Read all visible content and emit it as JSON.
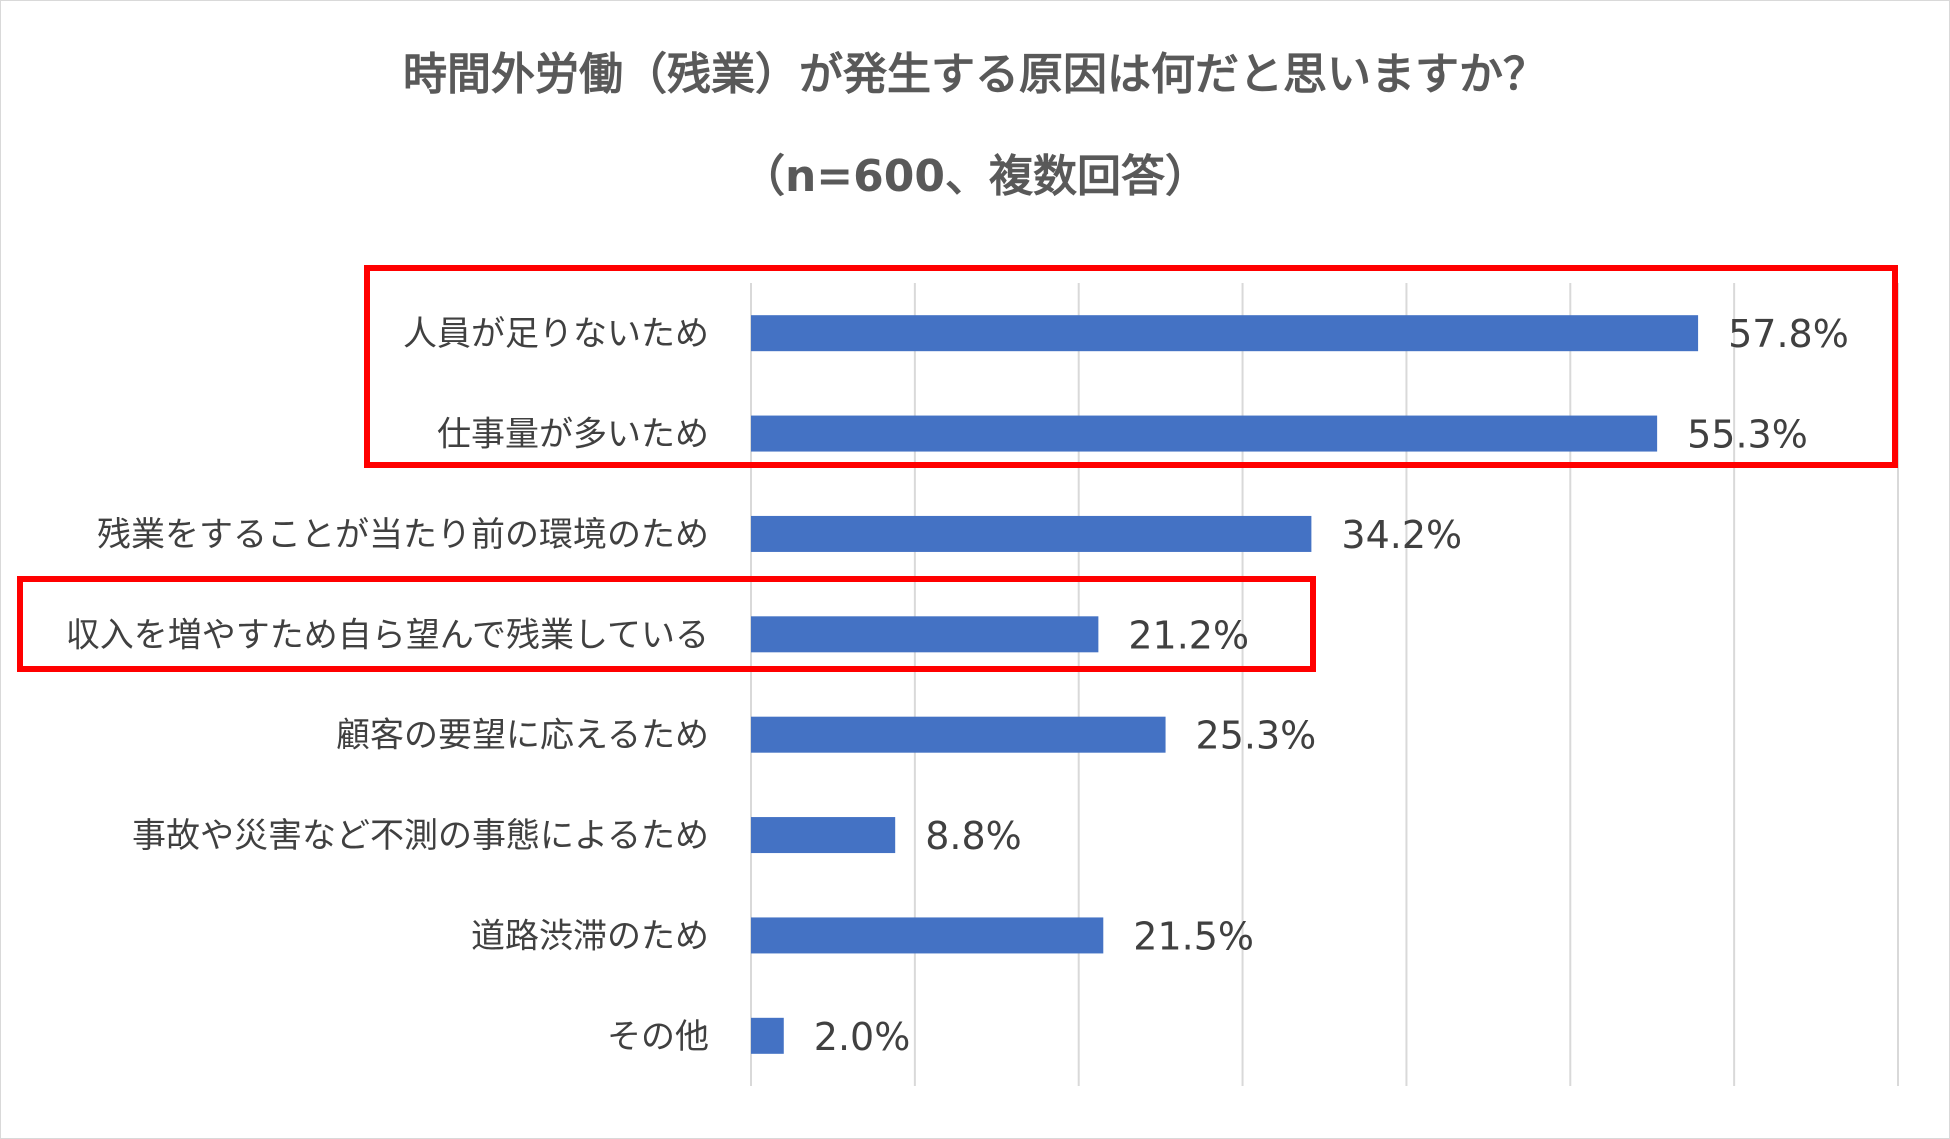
{
  "chart_data": {
    "type": "bar",
    "orientation": "horizontal",
    "title": "時間外労働（残業）が発生する原因は何だと思いますか？",
    "subtitle": "（n=600、複数回答）",
    "categories": [
      "人員が足りないため",
      "仕事量が多いため",
      "残業をすることが当たり前の環境のため",
      "収入を増やすため自ら望んで残業している",
      "顧客の要望に応えるため",
      "事故や災害など不測の事態によるため",
      "道路渋滞のため",
      "その他"
    ],
    "values": [
      57.8,
      55.3,
      34.2,
      21.2,
      25.3,
      8.8,
      21.5,
      2.0
    ],
    "value_labels": [
      "57.8%",
      "55.3%",
      "34.2%",
      "21.2%",
      "25.3%",
      "8.8%",
      "21.5%",
      "2.0%"
    ],
    "unit": "%",
    "xlim": [
      0,
      70
    ],
    "grid_step": 10,
    "grid": true,
    "highlighted_categories": [
      [
        "人員が足りないため",
        "仕事量が多いため"
      ],
      [
        "収入を増やすため自ら望んで残業している"
      ]
    ],
    "colors": {
      "bar": "#4472c4",
      "gridline": "#d9d9d9",
      "highlight_box": "#ff0000",
      "title": "#595959",
      "label": "#404040"
    }
  }
}
